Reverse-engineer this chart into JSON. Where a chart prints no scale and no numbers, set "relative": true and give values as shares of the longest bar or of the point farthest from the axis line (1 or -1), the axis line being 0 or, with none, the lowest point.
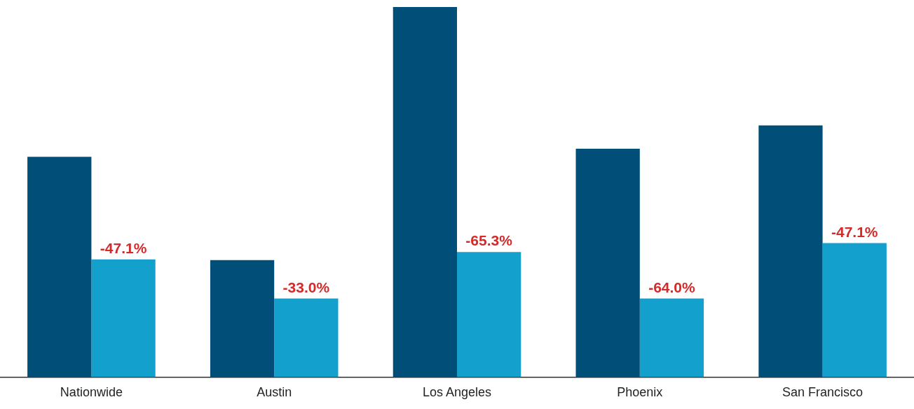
{
  "chart_data": {
    "type": "bar",
    "relative": true,
    "categories": [
      "Nationwide",
      "Austin",
      "Los Angeles",
      "Phoenix",
      "San Francisco"
    ],
    "series": [
      {
        "color": "#014f78",
        "values": [
          0.595,
          0.316,
          1,
          0.617,
          0.68
        ]
      },
      {
        "color": "#14a0cd",
        "values": [
          0.318,
          0.212,
          0.338,
          0.212,
          0.362
        ]
      }
    ],
    "annotations": [
      {
        "text": "-47.1%",
        "x": "Nationwide",
        "y": 0.318
      },
      {
        "text": "-33.0%",
        "x": "Austin",
        "y": 0.212
      },
      {
        "text": "-65.3%",
        "x": "Los Angeles",
        "y": 0.338
      },
      {
        "text": "-64.0%",
        "x": "Phoenix",
        "y": 0.212
      },
      {
        "text": "-47.1%",
        "x": "San Francisco",
        "y": 0.362
      }
    ],
    "grid": false,
    "legend": false
  }
}
